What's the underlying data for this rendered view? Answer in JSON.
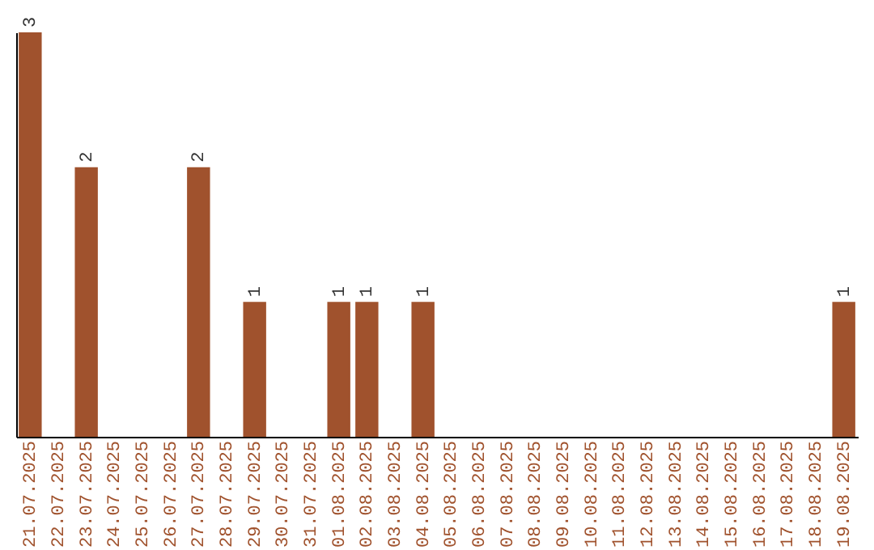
{
  "chart_data": {
    "type": "bar",
    "categories": [
      "21.07.2025",
      "22.07.2025",
      "23.07.2025",
      "24.07.2025",
      "25.07.2025",
      "26.07.2025",
      "27.07.2025",
      "28.07.2025",
      "29.07.2025",
      "30.07.2025",
      "31.07.2025",
      "01.08.2025",
      "02.08.2025",
      "03.08.2025",
      "04.08.2025",
      "05.08.2025",
      "06.08.2025",
      "07.08.2025",
      "08.08.2025",
      "09.08.2025",
      "10.08.2025",
      "11.08.2025",
      "12.08.2025",
      "13.08.2025",
      "14.08.2025",
      "15.08.2025",
      "16.08.2025",
      "17.08.2025",
      "18.08.2025",
      "19.08.2025"
    ],
    "values": [
      3,
      null,
      2,
      null,
      null,
      null,
      2,
      null,
      1,
      null,
      null,
      1,
      1,
      null,
      1,
      null,
      null,
      null,
      null,
      null,
      null,
      null,
      null,
      null,
      null,
      null,
      null,
      null,
      null,
      1
    ],
    "color": "#a0522d",
    "data_labels": true,
    "tick_labels": "x"
  }
}
